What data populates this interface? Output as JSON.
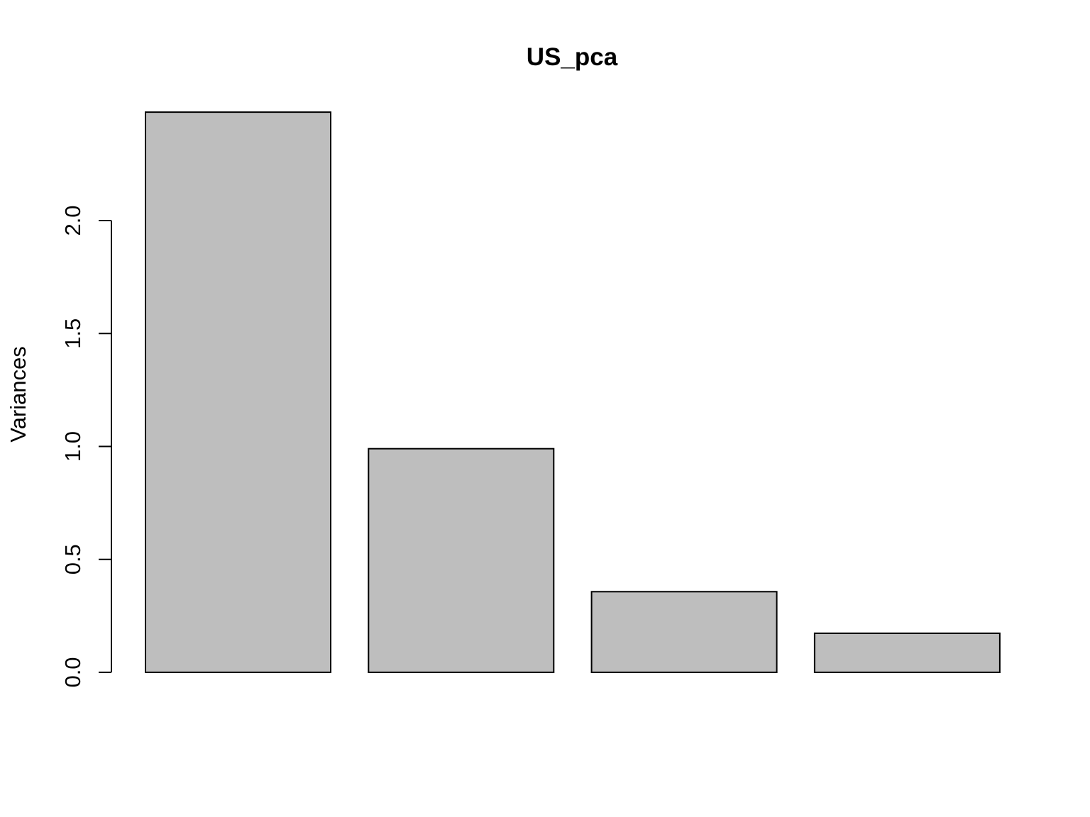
{
  "chart_data": {
    "type": "bar",
    "title": "US_pca",
    "xlabel": "",
    "ylabel": "Variances",
    "categories": [
      "",
      "",
      "",
      ""
    ],
    "values": [
      2.48,
      0.99,
      0.357,
      0.173
    ],
    "ylim": [
      0,
      2.48
    ],
    "yticks": [
      "0.0",
      "0.5",
      "1.0",
      "1.5",
      "2.0"
    ],
    "ytick_values": [
      0,
      0.5,
      1.0,
      1.5,
      2.0
    ],
    "grid": false,
    "legend": "none",
    "bar_fill": "#bebebe",
    "bar_stroke": "#000000"
  }
}
